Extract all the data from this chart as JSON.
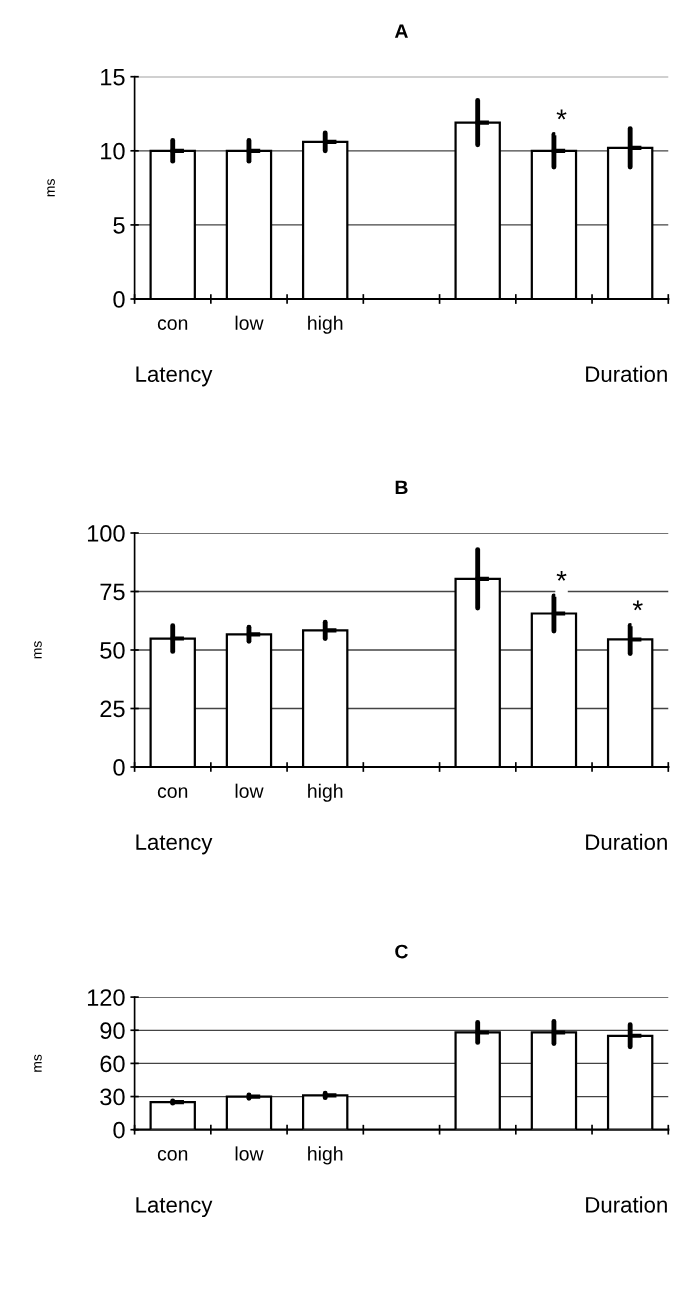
{
  "chart_data": [
    {
      "type": "bar",
      "title": "A",
      "ylabel": "ms",
      "categories": [
        "con",
        "low",
        "high",
        null,
        null,
        null,
        null
      ],
      "series": [
        {
          "color": "#ffffff",
          "values": [
            10,
            10,
            10.6,
            null,
            11.9,
            10,
            10.2
          ],
          "errors": [
            0.7,
            0.7,
            0.6,
            null,
            1.5,
            1.1,
            1.3
          ],
          "value_labels": [
            null,
            null,
            null,
            null,
            null,
            "*",
            null
          ]
        }
      ],
      "ylim": [
        0,
        15
      ],
      "yticks": [
        0,
        5,
        10,
        15
      ],
      "grid": "y",
      "annotations": [
        "Latency",
        "Duration"
      ]
    },
    {
      "type": "bar",
      "title": "B",
      "ylabel": "ms",
      "categories": [
        "con",
        "low",
        "high",
        null,
        null,
        null,
        null
      ],
      "series": [
        {
          "color": "#ffffff",
          "values": [
            54.9,
            56.7,
            58.4,
            null,
            80.4,
            65.6,
            54.5
          ],
          "errors": [
            5.5,
            3,
            3.5,
            null,
            12.5,
            7.5,
            6
          ],
          "value_labels": [
            null,
            null,
            null,
            null,
            null,
            "*",
            "*"
          ]
        }
      ],
      "ylim": [
        0,
        100
      ],
      "yticks": [
        0,
        25,
        50,
        75,
        100
      ],
      "grid": "y",
      "annotations": [
        "Latency",
        "Duration"
      ]
    },
    {
      "type": "bar",
      "title": "C",
      "ylabel": "ms",
      "categories": [
        "con",
        "low",
        "high",
        null,
        null,
        null,
        null
      ],
      "series": [
        {
          "color": "#ffffff",
          "values": [
            25,
            30,
            31,
            null,
            88,
            88,
            85
          ],
          "errors": [
            1,
            1.5,
            2,
            null,
            9,
            10,
            10
          ]
        }
      ],
      "ylim": [
        0,
        120
      ],
      "yticks": [
        0,
        30,
        60,
        90,
        120
      ],
      "grid": "y",
      "annotations": [
        "Latency",
        "Duration"
      ]
    }
  ]
}
